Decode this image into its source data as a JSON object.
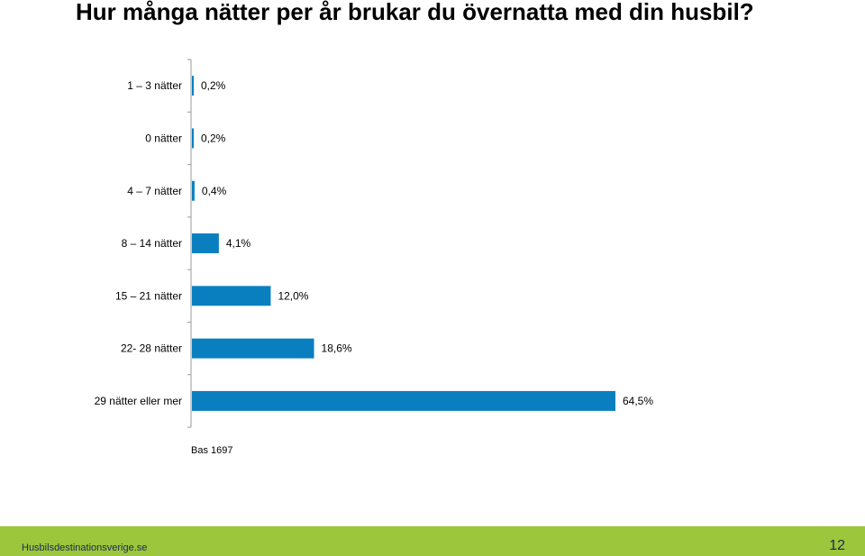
{
  "title": "Hur många nätter per år brukar du övernatta med din husbil?",
  "base_note": "Bas 1697",
  "footer": {
    "site": "Husbilsdestinationsverige.se",
    "page_number": "12",
    "color": "#9cc63b"
  },
  "chart_data": {
    "type": "bar",
    "orientation": "horizontal",
    "categories": [
      "1 – 3 nätter",
      "0 nätter",
      "4 – 7 nätter",
      "8 – 14 nätter",
      "15 – 21 nätter",
      "22- 28 nätter",
      "29 nätter eller mer"
    ],
    "values": [
      0.2,
      0.2,
      0.4,
      4.1,
      12.0,
      18.6,
      64.5
    ],
    "value_labels": [
      "0,2%",
      "0,2%",
      "0,4%",
      "4,1%",
      "12,0%",
      "18,6%",
      "64,5%"
    ],
    "unit": "%",
    "xlim": [
      0,
      64.5
    ],
    "bar_color": "#0a7fc0",
    "grid": false,
    "legend": "none"
  }
}
